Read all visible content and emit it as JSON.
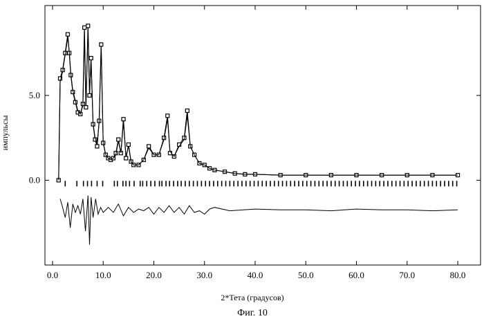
{
  "chart_data": {
    "type": "line",
    "xlabel": "2*Тета (градусов)",
    "ylabel": "импульсы",
    "caption": "Фиг. 10",
    "x_ticks": [
      "0.0",
      "10.0",
      "20.0",
      "30.0",
      "40.0",
      "50.0",
      "60.0",
      "70.0",
      "80.0"
    ],
    "y_ticks": [
      "5.0",
      "0.0"
    ],
    "xlim": [
      -1.5,
      84.5
    ],
    "ylim": [
      -5.0,
      10.3
    ],
    "grid": false,
    "series": [
      {
        "role": "observed",
        "marker": "square",
        "x": [
          1.2,
          1.5,
          2.0,
          2.5,
          3.0,
          3.3,
          3.6,
          4.0,
          4.5,
          5.0,
          5.5,
          6.0,
          6.3,
          6.6,
          7.0,
          7.3,
          7.6,
          8.0,
          8.4,
          8.8,
          9.2,
          9.6,
          10.0,
          10.5,
          11.0,
          11.5,
          12.0,
          12.5,
          13.0,
          13.5,
          14.0,
          14.5,
          15.0,
          15.5,
          16.0,
          17.0,
          18.0,
          19.0,
          20.0,
          21.0,
          22.0,
          22.7,
          23.2,
          24.0,
          25.0,
          26.0,
          26.6,
          27.2,
          28.0,
          29.0,
          30.0,
          31.0,
          32.0,
          34.0,
          36.0,
          38.0,
          40.0,
          45.0,
          50.0,
          55.0,
          60.0,
          65.0,
          70.0,
          75.0,
          80.0
        ],
        "y": [
          0.0,
          6.0,
          6.5,
          7.5,
          8.6,
          7.5,
          6.2,
          5.2,
          4.6,
          4.0,
          3.9,
          4.5,
          9.0,
          4.3,
          9.1,
          5.0,
          7.2,
          3.3,
          2.4,
          2.0,
          3.5,
          8.0,
          2.2,
          1.5,
          1.3,
          1.2,
          1.3,
          1.6,
          2.4,
          1.6,
          3.6,
          1.3,
          2.1,
          1.1,
          0.9,
          0.9,
          1.2,
          2.0,
          1.5,
          1.5,
          2.5,
          3.8,
          1.6,
          1.4,
          2.1,
          2.5,
          4.1,
          2.0,
          1.5,
          1.0,
          0.9,
          0.7,
          0.6,
          0.5,
          0.4,
          0.35,
          0.35,
          0.3,
          0.3,
          0.3,
          0.3,
          0.3,
          0.3,
          0.3,
          0.3
        ]
      },
      {
        "role": "calculated",
        "marker": "none",
        "x": [
          1.2,
          1.5,
          2.0,
          2.5,
          3.0,
          3.3,
          3.6,
          4.0,
          4.5,
          5.0,
          5.5,
          6.0,
          6.3,
          6.6,
          7.0,
          7.3,
          7.6,
          8.0,
          8.4,
          8.8,
          9.2,
          9.6,
          10.0,
          10.5,
          11.0,
          11.5,
          12.0,
          12.5,
          13.0,
          13.5,
          14.0,
          14.5,
          15.0,
          15.5,
          16.0,
          17.0,
          18.0,
          19.0,
          20.0,
          21.0,
          22.0,
          22.7,
          23.2,
          24.0,
          25.0,
          26.0,
          26.6,
          27.2,
          28.0,
          29.0,
          30.0,
          31.0,
          32.0,
          34.0,
          36.0,
          38.0,
          40.0,
          45.0,
          50.0,
          55.0,
          60.0,
          65.0,
          70.0,
          75.0,
          80.0
        ],
        "y": [
          0.0,
          5.8,
          6.4,
          7.4,
          8.4,
          7.6,
          6.3,
          5.3,
          4.7,
          4.1,
          3.9,
          4.4,
          8.6,
          4.5,
          8.8,
          5.2,
          7.0,
          3.4,
          2.5,
          2.1,
          3.4,
          7.9,
          2.3,
          1.5,
          1.3,
          1.2,
          1.3,
          1.5,
          2.3,
          1.6,
          3.4,
          1.4,
          2.0,
          1.1,
          0.9,
          0.9,
          1.2,
          1.9,
          1.5,
          1.5,
          2.4,
          3.6,
          1.7,
          1.4,
          2.0,
          2.4,
          3.8,
          2.0,
          1.5,
          1.0,
          0.9,
          0.7,
          0.6,
          0.5,
          0.4,
          0.35,
          0.35,
          0.3,
          0.3,
          0.3,
          0.3,
          0.3,
          0.3,
          0.3,
          0.3
        ]
      },
      {
        "role": "difference",
        "marker": "none",
        "baseline": -1.75,
        "x": [
          1.5,
          2.0,
          2.5,
          3.0,
          3.5,
          4.0,
          4.5,
          5.0,
          5.5,
          6.0,
          6.5,
          7.0,
          7.3,
          7.6,
          8.0,
          8.5,
          9.0,
          9.5,
          10.0,
          11.0,
          12.0,
          13.0,
          14.0,
          15.0,
          16.0,
          17.0,
          18.0,
          19.0,
          20.0,
          21.0,
          22.0,
          23.0,
          24.0,
          25.0,
          26.0,
          27.0,
          28.0,
          29.0,
          30.0,
          31.0,
          32.0,
          35.0,
          40.0,
          45.0,
          50.0,
          55.0,
          60.0,
          65.0,
          70.0,
          75.0,
          80.0
        ],
        "y": [
          -1.1,
          -1.6,
          -2.2,
          -1.3,
          -2.8,
          -1.4,
          -1.9,
          -1.5,
          -2.0,
          -1.1,
          -3.0,
          -0.9,
          -3.8,
          -1.0,
          -2.2,
          -1.1,
          -2.0,
          -1.6,
          -1.9,
          -1.6,
          -1.9,
          -1.4,
          -2.1,
          -1.6,
          -1.9,
          -1.7,
          -1.8,
          -1.6,
          -2.0,
          -1.6,
          -1.9,
          -1.5,
          -1.9,
          -1.6,
          -2.0,
          -1.5,
          -1.9,
          -1.8,
          -2.0,
          -1.7,
          -1.6,
          -1.8,
          -1.7,
          -1.75,
          -1.75,
          -1.8,
          -1.7,
          -1.75,
          -1.75,
          -1.8,
          -1.75
        ]
      }
    ],
    "reflection_ticks": {
      "y": -0.2,
      "x": [
        2.5,
        4.8,
        6.1,
        6.9,
        7.7,
        8.8,
        9.9,
        12.2,
        12.8,
        13.9,
        14.5,
        15.2,
        16.1,
        17.3,
        17.8,
        18.6,
        19.4,
        20.2,
        21.1,
        21.6,
        22.4,
        23.1,
        23.9,
        24.7,
        25.4,
        26.2,
        27.0,
        27.8,
        28.6,
        29.4,
        30.2,
        31.0,
        31.8,
        32.6,
        33.4,
        34.2,
        35.0,
        35.8,
        36.6,
        37.4,
        38.2,
        39.0,
        39.8,
        40.6,
        41.4,
        42.2,
        43.0,
        43.8,
        44.6,
        45.4,
        46.2,
        47.0,
        47.8,
        48.6,
        49.4,
        50.2,
        51.0,
        51.8,
        52.6,
        53.4,
        54.2,
        55.0,
        55.8,
        56.6,
        57.4,
        58.2,
        59.0,
        59.8,
        60.6,
        61.4,
        62.2,
        63.0,
        63.8,
        64.6,
        65.4,
        66.2,
        67.0,
        67.8,
        68.6,
        69.4,
        70.2,
        71.0,
        71.8,
        72.6,
        73.4,
        74.2,
        75.0,
        75.8,
        76.6,
        77.4,
        78.2,
        79.0,
        79.8
      ]
    }
  }
}
